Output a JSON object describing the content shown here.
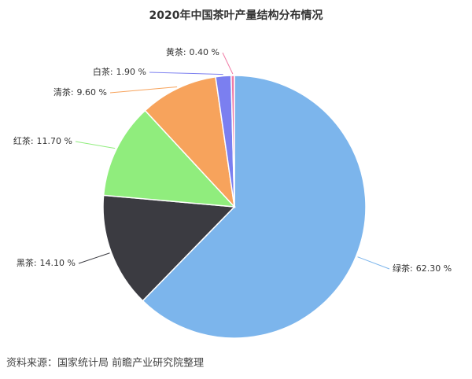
{
  "chart_data": {
    "type": "pie",
    "title": "2020年中国茶叶产量结构分布情况",
    "categories": [
      "绿茶:",
      "黑茶:",
      "红茶:",
      "清茶:",
      "白茶:",
      "黄茶:"
    ],
    "values": [
      62.3,
      14.1,
      11.7,
      9.6,
      1.9,
      0.4
    ],
    "value_labels": [
      "62.30 %",
      "14.10 %",
      "11.70 %",
      "9.60 %",
      "1.90 %",
      "0.40 %"
    ],
    "colors": [
      "#7cb5ec",
      "#3b3b41",
      "#90ed7d",
      "#f7a35c",
      "#7b7ff0",
      "#f07ca6"
    ],
    "source": "资料来源：国家统计局 前瞻产业研究院整理"
  }
}
